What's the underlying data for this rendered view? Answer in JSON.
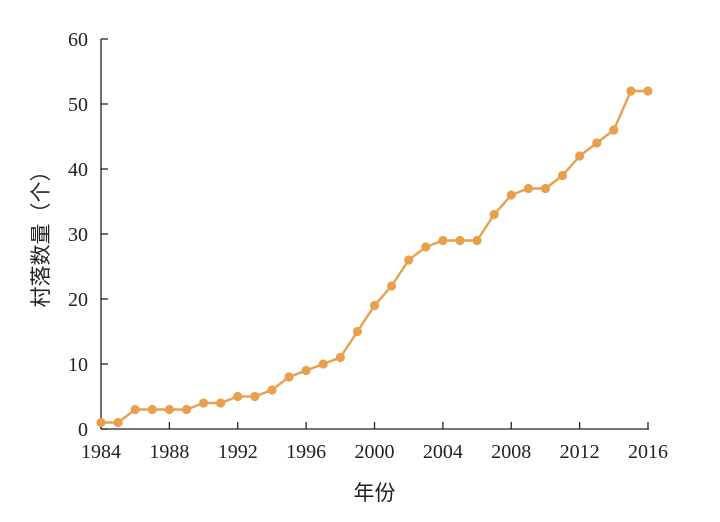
{
  "chart_data": {
    "type": "line",
    "title": "",
    "xlabel": "年份",
    "ylabel": "村落数量（个）",
    "xlim": [
      1984,
      2016
    ],
    "ylim": [
      0,
      60
    ],
    "x_ticks": [
      1984,
      1988,
      1992,
      1996,
      2000,
      2004,
      2008,
      2012,
      2016
    ],
    "y_ticks": [
      0,
      10,
      20,
      30,
      40,
      50,
      60
    ],
    "grid": false,
    "legend": "none",
    "color": "#E8A04D",
    "series": [
      {
        "x": [
          1984,
          1985,
          1986,
          1987,
          1988,
          1989,
          1990,
          1991,
          1992,
          1993,
          1994,
          1995,
          1996,
          1997,
          1998,
          1999,
          2000,
          2001,
          2002,
          2003,
          2004,
          2005,
          2006,
          2007,
          2008,
          2009,
          2010,
          2011,
          2012,
          2013,
          2014,
          2015,
          2016
        ],
        "values": [
          1,
          1,
          3,
          3,
          3,
          3,
          4,
          4,
          5,
          5,
          6,
          8,
          9,
          10,
          11,
          15,
          19,
          22,
          26,
          28,
          29,
          29,
          29,
          33,
          36,
          37,
          37,
          39,
          42,
          44,
          46,
          52,
          52
        ]
      }
    ]
  }
}
